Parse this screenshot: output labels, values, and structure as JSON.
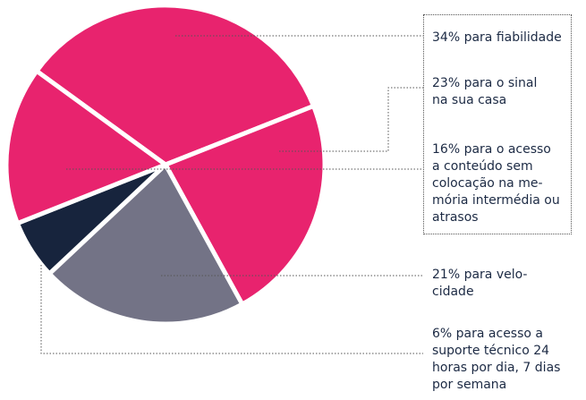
{
  "chart_data": {
    "type": "pie",
    "title": "",
    "slices": [
      {
        "label": "34% para fiabilidade",
        "value": 34,
        "color": "#e8236e"
      },
      {
        "label": "23% para o sinal\nna sua casa",
        "value": 23,
        "color": "#e8236e"
      },
      {
        "label": "21% para velo-\ncidade",
        "value": 21,
        "color": "#737386"
      },
      {
        "label": "6% para acesso a\nsuporte técnico 24\nhoras por dia, 7 dias\npor semana",
        "value": 6,
        "color": "#17243d"
      },
      {
        "label": "16% para o acesso\na conteúdo sem\ncolocação na me-\nmória intermédia ou\natrasos",
        "value": 16,
        "color": "#e8236e"
      }
    ],
    "legend": "right"
  }
}
